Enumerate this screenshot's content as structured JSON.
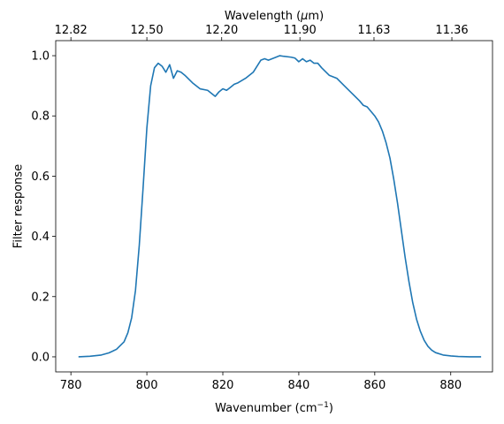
{
  "chart_data": {
    "type": "line",
    "xlabel_main": "Wavenumber (cm",
    "xlabel_sup": "−1",
    "xlabel_close": ")",
    "xlabel_top_prefix": "Wavelength (",
    "xlabel_top_mu": "μ",
    "xlabel_top_suffix": "m)",
    "ylabel": "Filter response",
    "xlim": [
      776,
      891
    ],
    "ylim": [
      -0.05,
      1.05
    ],
    "xticks": [
      780,
      800,
      820,
      840,
      860,
      880
    ],
    "xtick_labels": [
      "780",
      "800",
      "820",
      "840",
      "860",
      "880"
    ],
    "yticks": [
      0.0,
      0.2,
      0.4,
      0.6,
      0.8,
      1.0
    ],
    "ytick_labels": [
      "0.0",
      "0.2",
      "0.4",
      "0.6",
      "0.8",
      "1.0"
    ],
    "top_ticks": [
      780.0,
      800.0,
      819.7,
      840.3,
      859.8,
      880.3
    ],
    "top_tick_labels": [
      "12.82",
      "12.50",
      "12.20",
      "11.90",
      "11.63",
      "11.36"
    ],
    "grid": false,
    "series": [
      {
        "color": "#1f77b4",
        "x": [
          782,
          785,
          788,
          790,
          792,
          794,
          795,
          796,
          797,
          798,
          799,
          800,
          801,
          802,
          803,
          804,
          805,
          806,
          807,
          808,
          809,
          810,
          812,
          814,
          816,
          818,
          819,
          820,
          821,
          822,
          823,
          824,
          826,
          828,
          830,
          831,
          832,
          834,
          835,
          836,
          838,
          839,
          840,
          841,
          842,
          843,
          844,
          845,
          846,
          848,
          850,
          852,
          854,
          856,
          857,
          858,
          859,
          860,
          861,
          862,
          863,
          864,
          865,
          866,
          867,
          868,
          869,
          870,
          871,
          872,
          873,
          874,
          875,
          876,
          878,
          880,
          882,
          885,
          888
        ],
        "y": [
          0.0,
          0.002,
          0.006,
          0.013,
          0.025,
          0.05,
          0.08,
          0.13,
          0.22,
          0.37,
          0.56,
          0.76,
          0.9,
          0.96,
          0.975,
          0.965,
          0.945,
          0.97,
          0.925,
          0.95,
          0.945,
          0.935,
          0.91,
          0.89,
          0.885,
          0.865,
          0.88,
          0.89,
          0.885,
          0.895,
          0.905,
          0.91,
          0.925,
          0.945,
          0.985,
          0.99,
          0.985,
          0.995,
          1.0,
          0.998,
          0.995,
          0.992,
          0.98,
          0.99,
          0.98,
          0.985,
          0.975,
          0.975,
          0.96,
          0.935,
          0.925,
          0.9,
          0.875,
          0.85,
          0.835,
          0.83,
          0.815,
          0.8,
          0.78,
          0.75,
          0.71,
          0.66,
          0.59,
          0.51,
          0.42,
          0.33,
          0.25,
          0.18,
          0.125,
          0.085,
          0.055,
          0.035,
          0.022,
          0.014,
          0.006,
          0.003,
          0.001,
          0.0,
          0.0
        ]
      }
    ]
  }
}
